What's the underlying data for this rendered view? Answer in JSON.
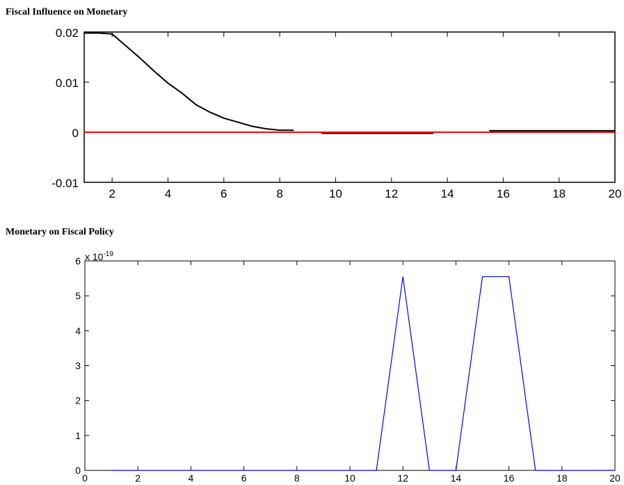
{
  "chart_data": [
    {
      "type": "line",
      "title": "Fiscal Influence on Monetary",
      "xlim": [
        1,
        20
      ],
      "ylim": [
        -0.01,
        0.02
      ],
      "xticks": [
        2,
        4,
        6,
        8,
        10,
        12,
        14,
        16,
        18,
        20
      ],
      "yticks": [
        -0.01,
        0,
        0.01,
        0.02
      ],
      "ytick_labels": [
        "-0.01",
        "0",
        "0.01",
        "0.02"
      ],
      "grid": false,
      "series": [
        {
          "color": "#000000",
          "x": [
            1,
            1.5,
            2,
            2.5,
            3,
            3.5,
            4,
            4.5,
            5,
            5.5,
            6,
            6.5,
            7,
            7.5,
            8,
            8.5
          ],
          "y": [
            0.0198,
            0.0198,
            0.0196,
            0.0172,
            0.0148,
            0.0122,
            0.0098,
            0.0078,
            0.0055,
            0.004,
            0.0028,
            0.002,
            0.0012,
            0.0007,
            0.0004,
            0.0004
          ]
        },
        {
          "color": "#000000",
          "x": [
            9.5,
            13.5
          ],
          "y": [
            -0.0002,
            -0.0002
          ]
        },
        {
          "color": "#000000",
          "x": [
            15.5,
            20
          ],
          "y": [
            0.0003,
            0.0003
          ]
        },
        {
          "color": "#ff0000",
          "x": [
            1,
            20
          ],
          "y": [
            0,
            0
          ]
        }
      ]
    },
    {
      "type": "line",
      "title": "Monetary on Fiscal Policy",
      "xlim": [
        0,
        20
      ],
      "ylim": [
        0,
        6
      ],
      "xticks": [
        0,
        2,
        4,
        6,
        8,
        10,
        12,
        14,
        16,
        18,
        20
      ],
      "yticks": [
        0,
        1,
        2,
        3,
        4,
        5,
        6
      ],
      "scale_label": "x 10",
      "scale_exponent": "-19",
      "grid": false,
      "series": [
        {
          "color": "#0000ff",
          "x": [
            1,
            2,
            3,
            4,
            5,
            6,
            7,
            8,
            9,
            10,
            11,
            12,
            13,
            14,
            15,
            16,
            17,
            18,
            19,
            20
          ],
          "y": [
            0,
            0,
            0,
            0,
            0,
            0,
            0,
            0,
            0,
            0,
            0,
            5.55,
            0,
            0,
            5.55,
            5.55,
            0,
            0,
            0,
            0
          ]
        }
      ]
    }
  ]
}
